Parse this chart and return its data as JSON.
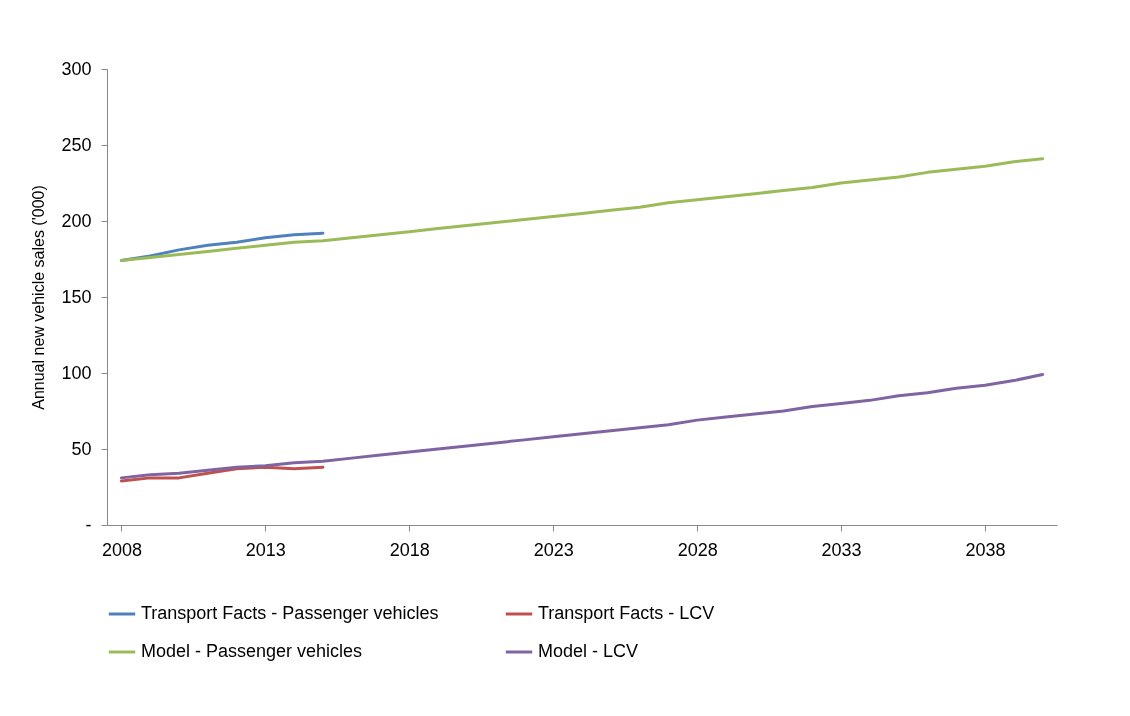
{
  "chart_data": {
    "type": "line",
    "ylabel": "Annual new vehicle sales  ('000)",
    "x": [
      2008,
      2009,
      2010,
      2011,
      2012,
      2013,
      2014,
      2015,
      2016,
      2017,
      2018,
      2019,
      2020,
      2021,
      2022,
      2023,
      2024,
      2025,
      2026,
      2027,
      2028,
      2029,
      2030,
      2031,
      2032,
      2033,
      2034,
      2035,
      2036,
      2037,
      2038,
      2039,
      2040
    ],
    "xlim": [
      2007.5,
      2040.5
    ],
    "xticks": [
      2008,
      2013,
      2018,
      2023,
      2028,
      2033,
      2038
    ],
    "ylim": [
      0,
      300
    ],
    "yticks": [
      {
        "value": 0,
        "label": "-"
      },
      50,
      100,
      150,
      200,
      250,
      300
    ],
    "grid": false,
    "legend": "bottom",
    "line_style": "solid",
    "marker": "none",
    "series": [
      {
        "name": "Transport Facts - Passenger vehicles",
        "color": "#4f81bd",
        "x": [
          2008,
          2009,
          2010,
          2011,
          2012,
          2013,
          2014,
          2015
        ],
        "values": [
          174,
          177,
          181,
          184,
          186,
          189,
          191,
          192
        ]
      },
      {
        "name": "Transport Facts - LCV",
        "color": "#c0504d",
        "x": [
          2008,
          2009,
          2010,
          2011,
          2012,
          2013,
          2014,
          2015
        ],
        "values": [
          29,
          31,
          31,
          34,
          37,
          38,
          37,
          38
        ]
      },
      {
        "name": "Model - Passenger vehicles",
        "color": "#9bbb59",
        "values": [
          174,
          176,
          178,
          180,
          182,
          184,
          186,
          187,
          189,
          191,
          193,
          195,
          197,
          199,
          201,
          203,
          205,
          207,
          209,
          212,
          214,
          216,
          218,
          220,
          222,
          225,
          227,
          229,
          232,
          234,
          236,
          239,
          241
        ]
      },
      {
        "name": "Model - LCV",
        "color": "#8064a2",
        "values": [
          31,
          33,
          34,
          36,
          38,
          39,
          41,
          42,
          44,
          46,
          48,
          50,
          52,
          54,
          56,
          58,
          60,
          62,
          64,
          66,
          69,
          71,
          73,
          75,
          78,
          80,
          82,
          85,
          87,
          90,
          92,
          95,
          99
        ]
      }
    ]
  }
}
